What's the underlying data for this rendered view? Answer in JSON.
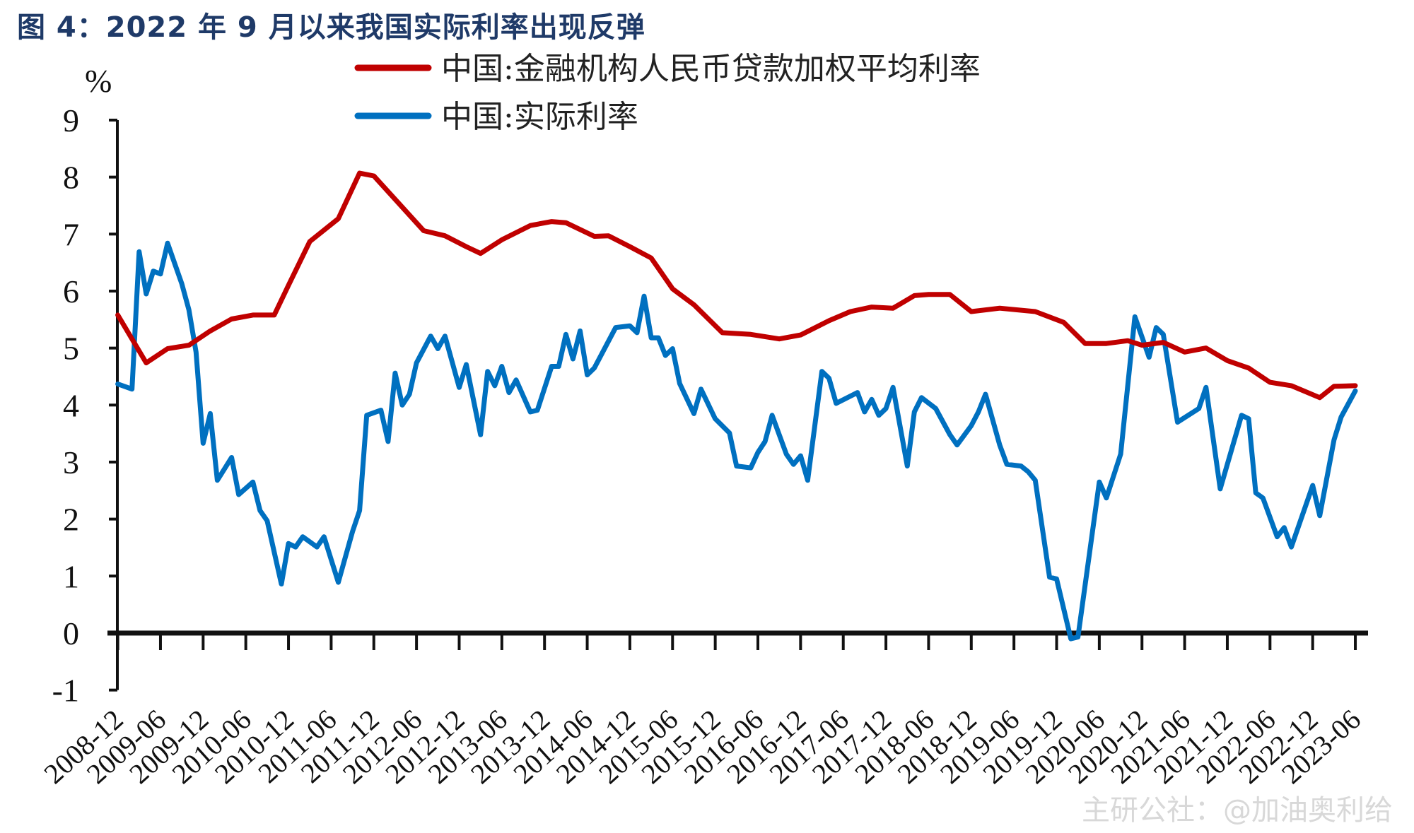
{
  "title": "图 4：2022 年 9 月以来我国实际利率出现反弹",
  "watermark": "主研公社：@加油奥利给",
  "chart_data": {
    "type": "line",
    "title": "图 4：2022 年 9 月以来我国实际利率出现反弹",
    "ylabel": "%",
    "xlabel": "",
    "ylim": [
      -1,
      9
    ],
    "yticks": [
      "-1",
      "0",
      "1",
      "2",
      "3",
      "4",
      "5",
      "6",
      "7",
      "8",
      "9"
    ],
    "xlim": [
      "2008-12",
      "2023-06"
    ],
    "xticks": [
      "2008-12",
      "2009-06",
      "2009-12",
      "2010-06",
      "2010-12",
      "2011-06",
      "2011-12",
      "2012-06",
      "2012-12",
      "2013-06",
      "2013-12",
      "2014-06",
      "2014-12",
      "2015-06",
      "2015-12",
      "2016-06",
      "2016-12",
      "2017-06",
      "2017-12",
      "2018-06",
      "2018-12",
      "2019-06",
      "2019-12",
      "2020-06",
      "2020-12",
      "2021-06",
      "2021-12",
      "2022-06",
      "2022-12",
      "2023-06"
    ],
    "grid": false,
    "legend_position": "top",
    "series": [
      {
        "name": "中国:金融机构人民币贷款加权平均利率",
        "color": "#c00000",
        "x": [
          "2008-12",
          "2009-04",
          "2009-07",
          "2009-10",
          "2010-01",
          "2010-04",
          "2010-07",
          "2010-10",
          "2010-12",
          "2011-03",
          "2011-07",
          "2011-10",
          "2011-12",
          "2012-03",
          "2012-07",
          "2012-10",
          "2013-01",
          "2013-03",
          "2013-06",
          "2013-10",
          "2014-01",
          "2014-03",
          "2014-07",
          "2014-09",
          "2014-12",
          "2015-03",
          "2015-06",
          "2015-09",
          "2016-01",
          "2016-05",
          "2016-09",
          "2016-12",
          "2017-04",
          "2017-07",
          "2017-10",
          "2018-01",
          "2018-04",
          "2018-06",
          "2018-09",
          "2018-12",
          "2019-04",
          "2019-09",
          "2020-01",
          "2020-04",
          "2020-07",
          "2020-10",
          "2020-12",
          "2021-03",
          "2021-06",
          "2021-09",
          "2021-12",
          "2022-03",
          "2022-06",
          "2022-09",
          "2023-01",
          "2023-03",
          "2023-06"
        ],
        "values": [
          5.58,
          4.74,
          4.99,
          5.05,
          5.3,
          5.51,
          5.58,
          5.58,
          6.1,
          6.87,
          7.27,
          8.07,
          8.02,
          7.61,
          7.06,
          6.97,
          6.78,
          6.66,
          6.9,
          7.15,
          7.22,
          7.2,
          6.96,
          6.97,
          6.78,
          6.58,
          6.04,
          5.76,
          5.27,
          5.24,
          5.16,
          5.23,
          5.48,
          5.64,
          5.72,
          5.7,
          5.92,
          5.94,
          5.94,
          5.64,
          5.7,
          5.64,
          5.45,
          5.08,
          5.08,
          5.13,
          5.05,
          5.1,
          4.93,
          5.0,
          4.78,
          4.65,
          4.4,
          4.34,
          4.13,
          4.33,
          4.34
        ]
      },
      {
        "name": "中国:实际利率",
        "color": "#0070c0",
        "x": [
          "2008-12",
          "2009-02",
          "2009-03",
          "2009-04",
          "2009-05",
          "2009-06",
          "2009-07",
          "2009-09",
          "2009-10",
          "2009-11",
          "2009-12",
          "2010-01",
          "2010-02",
          "2010-04",
          "2010-05",
          "2010-07",
          "2010-08",
          "2010-09",
          "2010-11",
          "2010-12",
          "2011-01",
          "2011-02",
          "2011-04",
          "2011-05",
          "2011-07",
          "2011-09",
          "2011-10",
          "2011-11",
          "2012-01",
          "2012-02",
          "2012-03",
          "2012-04",
          "2012-05",
          "2012-06",
          "2012-08",
          "2012-09",
          "2012-10",
          "2012-12",
          "2013-01",
          "2013-03",
          "2013-04",
          "2013-05",
          "2013-06",
          "2013-07",
          "2013-08",
          "2013-10",
          "2013-11",
          "2014-01",
          "2014-02",
          "2014-03",
          "2014-04",
          "2014-05",
          "2014-06",
          "2014-07",
          "2014-10",
          "2014-12",
          "2015-01",
          "2015-02",
          "2015-03",
          "2015-04",
          "2015-05",
          "2015-06",
          "2015-07",
          "2015-09",
          "2015-10",
          "2015-12",
          "2016-02",
          "2016-03",
          "2016-05",
          "2016-06",
          "2016-07",
          "2016-08",
          "2016-10",
          "2016-11",
          "2016-12",
          "2017-01",
          "2017-03",
          "2017-04",
          "2017-05",
          "2017-08",
          "2017-09",
          "2017-10",
          "2017-11",
          "2017-12",
          "2018-01",
          "2018-03",
          "2018-04",
          "2018-05",
          "2018-07",
          "2018-09",
          "2018-10",
          "2018-12",
          "2019-01",
          "2019-02",
          "2019-04",
          "2019-05",
          "2019-07",
          "2019-08",
          "2019-09",
          "2019-11",
          "2019-12",
          "2020-02",
          "2020-03",
          "2020-06",
          "2020-07",
          "2020-09",
          "2020-11",
          "2021-01",
          "2021-02",
          "2021-03",
          "2021-05",
          "2021-08",
          "2021-09",
          "2021-11",
          "2022-02",
          "2022-03",
          "2022-04",
          "2022-05",
          "2022-07",
          "2022-08",
          "2022-09",
          "2022-12",
          "2023-01",
          "2023-03",
          "2023-04",
          "2023-06"
        ],
        "values": [
          4.37,
          4.28,
          6.69,
          5.95,
          6.35,
          6.3,
          6.84,
          6.13,
          5.67,
          4.93,
          3.33,
          3.85,
          2.68,
          3.08,
          2.43,
          2.65,
          2.15,
          1.97,
          0.86,
          1.57,
          1.51,
          1.69,
          1.51,
          1.69,
          0.89,
          1.78,
          2.15,
          3.82,
          3.91,
          3.36,
          4.56,
          4.0,
          4.19,
          4.74,
          5.21,
          4.99,
          5.21,
          4.31,
          4.71,
          3.48,
          4.59,
          4.34,
          4.68,
          4.22,
          4.44,
          3.88,
          3.91,
          4.68,
          4.68,
          5.24,
          4.81,
          5.3,
          4.53,
          4.65,
          5.36,
          5.39,
          5.27,
          5.91,
          5.18,
          5.18,
          4.87,
          4.99,
          4.38,
          3.85,
          4.28,
          3.76,
          3.51,
          2.93,
          2.9,
          3.17,
          3.36,
          3.82,
          3.14,
          2.96,
          3.11,
          2.68,
          4.59,
          4.47,
          4.03,
          4.22,
          3.88,
          4.1,
          3.82,
          3.94,
          4.31,
          2.93,
          3.88,
          4.13,
          3.94,
          3.48,
          3.3,
          3.64,
          3.88,
          4.19,
          3.3,
          2.96,
          2.93,
          2.83,
          2.68,
          0.98,
          0.95,
          -0.1,
          -0.07,
          2.65,
          2.37,
          3.14,
          5.55,
          4.84,
          5.36,
          5.24,
          3.7,
          3.94,
          4.31,
          2.53,
          3.82,
          3.76,
          2.46,
          2.37,
          1.69,
          1.85,
          1.51,
          2.59,
          2.06,
          3.39,
          3.79,
          4.25
        ]
      }
    ]
  }
}
